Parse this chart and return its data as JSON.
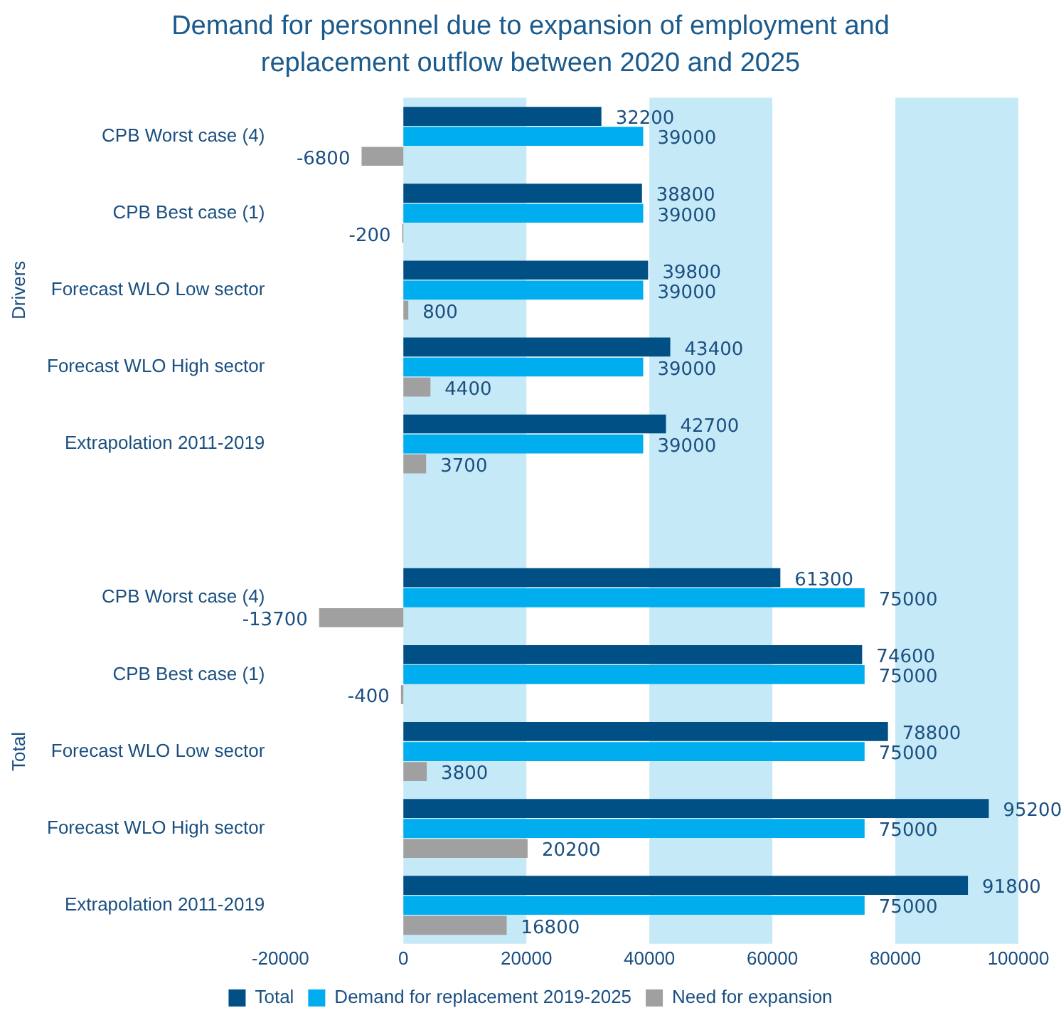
{
  "chart_data": {
    "type": "bar",
    "orientation": "horizontal",
    "title": "Demand for personnel due to expansion of employment and replacement outflow between 2020 and 2025",
    "categories": [
      "CPB Worst case (4)",
      "CPB Best case (1)",
      "Forecast WLO Low sector",
      "Forecast WLO High sector",
      "Extrapolation 2011-2019",
      null,
      "CPB Worst case (4)",
      "CPB Best case (1)",
      "Forecast WLO Low sector",
      "Forecast WLO High sector",
      "Extrapolation 2011-2019"
    ],
    "series": [
      {
        "name": "Total",
        "color": "#004f85",
        "values": [
          32200,
          38800,
          39800,
          43400,
          42700,
          null,
          61300,
          74600,
          78800,
          95200,
          91800
        ]
      },
      {
        "name": "Demand for replacement 2019-2025",
        "color": "#00aeef",
        "values": [
          39000,
          39000,
          39000,
          39000,
          39000,
          null,
          75000,
          75000,
          75000,
          75000,
          75000
        ]
      },
      {
        "name": "Need for expansion",
        "color": "#a0a0a0",
        "values": [
          -6800,
          -200,
          800,
          4400,
          3700,
          null,
          -13700,
          -400,
          3800,
          20200,
          16800
        ]
      }
    ],
    "xlim": [
      -20000,
      100000
    ],
    "xticks": [
      -20000,
      0,
      20000,
      40000,
      60000,
      80000,
      100000
    ],
    "bands": [
      {
        "axis": "x",
        "from": 0,
        "to": 20000,
        "color": "#c6e9f8"
      },
      {
        "axis": "x",
        "from": 40000,
        "to": 60000,
        "color": "#c6e9f8"
      },
      {
        "axis": "x",
        "from": 80000,
        "to": 100000,
        "color": "#c6e9f8"
      }
    ],
    "annotations": [
      "Drivers",
      "Total"
    ],
    "data_labels": true,
    "grid": false,
    "legend": "bottom"
  }
}
